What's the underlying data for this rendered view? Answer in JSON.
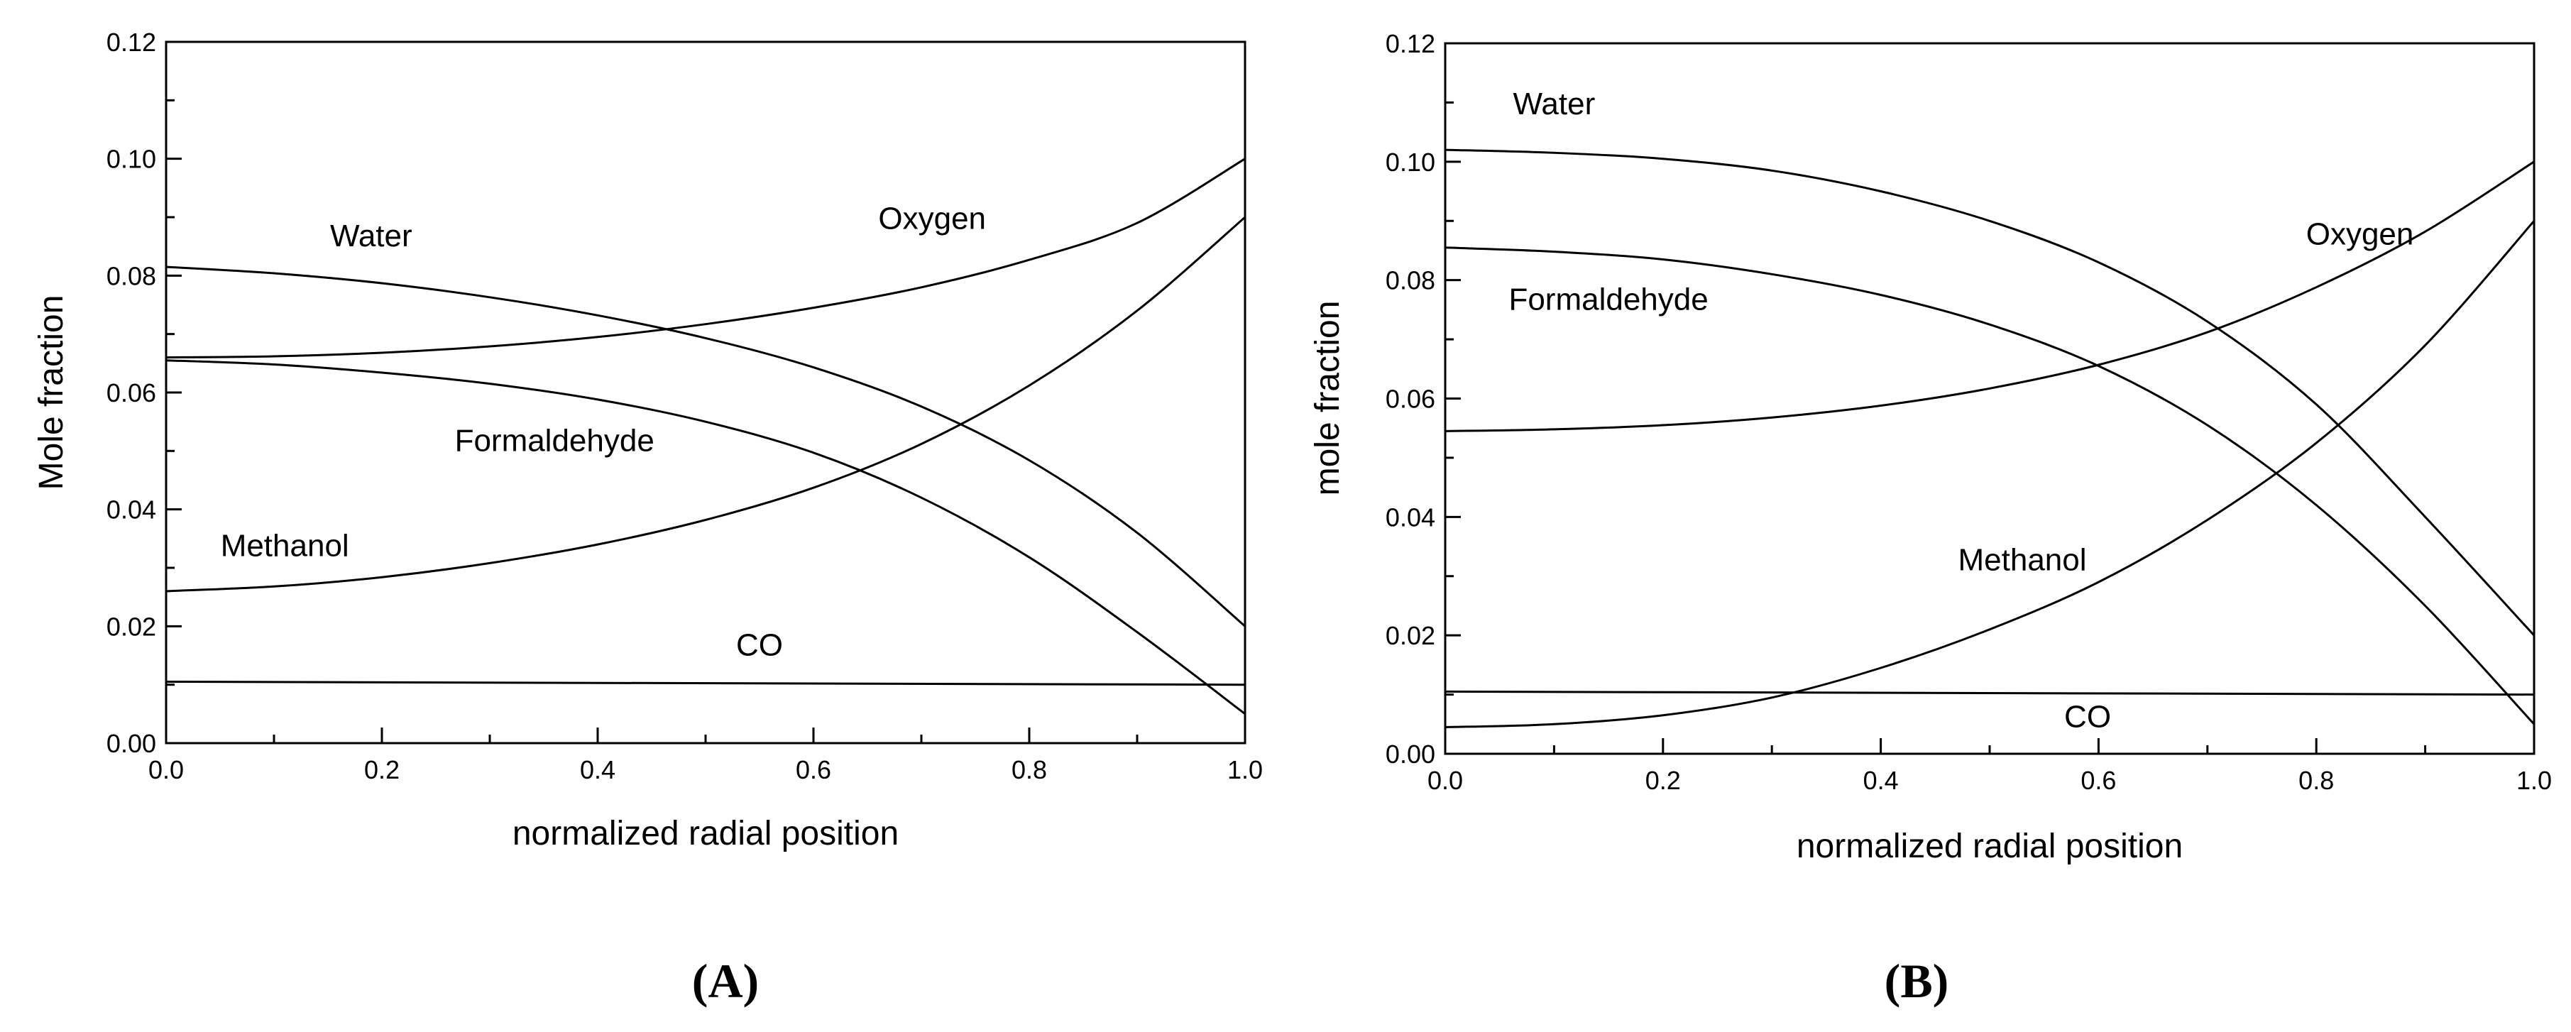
{
  "chart_data": [
    {
      "panel": "(A)",
      "panel_parts": [
        "(",
        "A",
        ")"
      ],
      "type": "line",
      "xlabel": "normalized radial position",
      "ylabel": "Mole fraction",
      "xlim": [
        0,
        1
      ],
      "ylim": [
        0,
        0.12
      ],
      "xticks": [
        "0.0",
        "0.2",
        "0.4",
        "0.6",
        "0.8",
        "1.0"
      ],
      "yticks": [
        "0.00",
        "0.02",
        "0.04",
        "0.06",
        "0.08",
        "0.10",
        "0.12"
      ],
      "series": [
        {
          "name": "Water",
          "x": [
            0,
            0.1,
            0.2,
            0.3,
            0.4,
            0.5,
            0.6,
            0.7,
            0.8,
            0.9,
            1.0
          ],
          "y": [
            0.0815,
            0.0804,
            0.0787,
            0.0763,
            0.0732,
            0.0693,
            0.0643,
            0.0576,
            0.0484,
            0.036,
            0.02
          ],
          "label_at": [
            0.19,
            0.085
          ]
        },
        {
          "name": "Oxygen",
          "x": [
            0,
            0.1,
            0.2,
            0.3,
            0.4,
            0.5,
            0.6,
            0.7,
            0.8,
            0.9,
            1.0
          ],
          "y": [
            0.066,
            0.0662,
            0.0668,
            0.0679,
            0.0695,
            0.0717,
            0.0745,
            0.078,
            0.0827,
            0.089,
            0.1
          ],
          "label_at": [
            0.71,
            0.088
          ]
        },
        {
          "name": "Formaldehyde",
          "x": [
            0,
            0.1,
            0.2,
            0.3,
            0.4,
            0.5,
            0.6,
            0.7,
            0.8,
            0.9,
            1.0
          ],
          "y": [
            0.0655,
            0.0648,
            0.0634,
            0.0615,
            0.0588,
            0.055,
            0.0497,
            0.042,
            0.0318,
            0.019,
            0.005
          ],
          "label_at": [
            0.36,
            0.05
          ]
        },
        {
          "name": "Methanol",
          "x": [
            0,
            0.1,
            0.2,
            0.3,
            0.4,
            0.5,
            0.6,
            0.7,
            0.8,
            0.9,
            1.0
          ],
          "y": [
            0.026,
            0.0268,
            0.0284,
            0.0308,
            0.034,
            0.0382,
            0.0437,
            0.0512,
            0.0612,
            0.074,
            0.09
          ],
          "label_at": [
            0.11,
            0.032
          ]
        },
        {
          "name": "CO",
          "x": [
            0,
            1.0
          ],
          "y": [
            0.0105,
            0.01
          ],
          "label_at": [
            0.55,
            0.015
          ]
        }
      ]
    },
    {
      "panel": "(B)",
      "panel_parts": [
        "(",
        "B",
        ")"
      ],
      "type": "line",
      "xlabel": "normalized radial position",
      "ylabel": "mole fraction",
      "xlim": [
        0,
        1
      ],
      "ylim": [
        0,
        0.12
      ],
      "xticks": [
        "0.0",
        "0.2",
        "0.4",
        "0.6",
        "0.8",
        "1.0"
      ],
      "yticks": [
        "0.00",
        "0.02",
        "0.04",
        "0.06",
        "0.08",
        "0.10",
        "0.12"
      ],
      "series": [
        {
          "name": "Water",
          "x": [
            0,
            0.1,
            0.2,
            0.3,
            0.4,
            0.5,
            0.6,
            0.7,
            0.8,
            0.9,
            1.0
          ],
          "y": [
            0.102,
            0.1015,
            0.1005,
            0.0985,
            0.095,
            0.09,
            0.083,
            0.073,
            0.059,
            0.04,
            0.02
          ],
          "label_at": [
            0.1,
            0.108
          ]
        },
        {
          "name": "Oxygen",
          "x": [
            0,
            0.1,
            0.2,
            0.3,
            0.4,
            0.5,
            0.6,
            0.7,
            0.8,
            0.9,
            1.0
          ],
          "y": [
            0.0545,
            0.0548,
            0.0555,
            0.0568,
            0.0588,
            0.0617,
            0.0657,
            0.0712,
            0.0788,
            0.0882,
            0.1
          ],
          "label_at": [
            0.84,
            0.086
          ]
        },
        {
          "name": "Formaldehyde",
          "x": [
            0,
            0.1,
            0.2,
            0.3,
            0.4,
            0.5,
            0.6,
            0.7,
            0.8,
            0.9,
            1.0
          ],
          "y": [
            0.0855,
            0.0848,
            0.0835,
            0.081,
            0.0775,
            0.0725,
            0.0655,
            0.0555,
            0.042,
            0.025,
            0.005
          ],
          "label_at": [
            0.15,
            0.075
          ]
        },
        {
          "name": "Methanol",
          "x": [
            0,
            0.1,
            0.2,
            0.3,
            0.4,
            0.5,
            0.6,
            0.7,
            0.8,
            0.9,
            1.0
          ],
          "y": [
            0.0045,
            0.005,
            0.0065,
            0.0095,
            0.0145,
            0.021,
            0.029,
            0.0395,
            0.0525,
            0.069,
            0.09
          ],
          "label_at": [
            0.53,
            0.031
          ]
        },
        {
          "name": "CO",
          "x": [
            0,
            1.0
          ],
          "y": [
            0.0105,
            0.01
          ],
          "label_at": [
            0.59,
            0.0045
          ]
        }
      ]
    }
  ]
}
